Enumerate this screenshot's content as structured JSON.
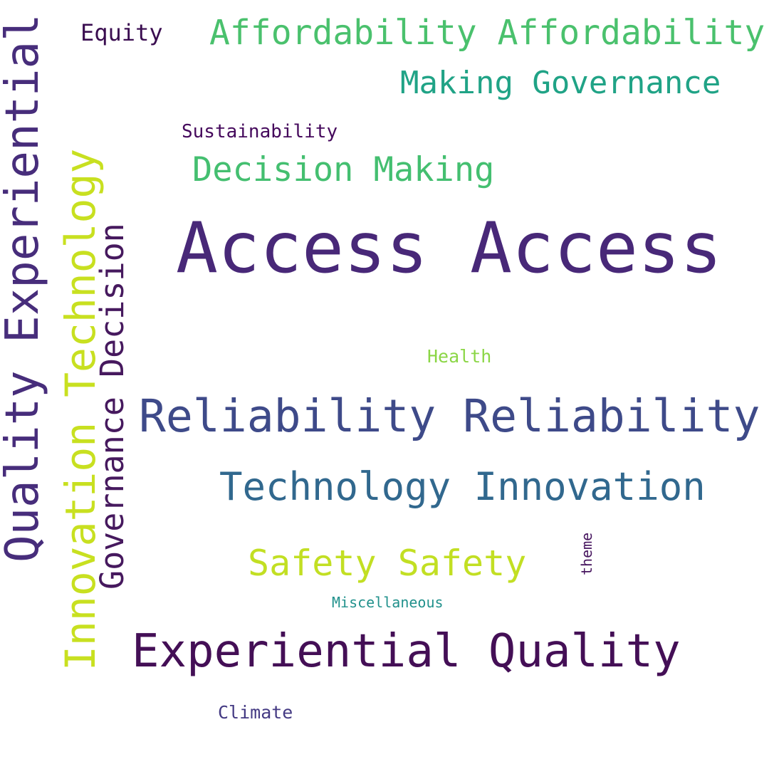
{
  "words": {
    "access": {
      "text": "Access Access",
      "color": "#482878"
    },
    "reliability": {
      "text": "Reliability Reliability",
      "color": "#3e4a89"
    },
    "technology_innovation": {
      "text": "Technology Innovation",
      "color": "#31688e"
    },
    "experiential_quality": {
      "text": "Experiential Quality",
      "color": "#440f56"
    },
    "quality_experiential": {
      "text": "Quality Experiential",
      "color": "#472d7b"
    },
    "innovation_technology": {
      "text": "Innovation Technology",
      "color": "#c8e020"
    },
    "governance_decision": {
      "text": "Governance Decision",
      "color": "#46195e"
    },
    "affordability": {
      "text": "Affordability Affordability",
      "color": "#4ac16d"
    },
    "making_governance": {
      "text": "Making Governance",
      "color": "#20a386"
    },
    "decision_making": {
      "text": "Decision Making",
      "color": "#44bf70"
    },
    "safety": {
      "text": "Safety Safety",
      "color": "#c2df23"
    },
    "equity": {
      "text": "Equity",
      "color": "#3a0d50"
    },
    "sustainability": {
      "text": "Sustainability",
      "color": "#45095c"
    },
    "health": {
      "text": "Health",
      "color": "#8bd646"
    },
    "miscellaneous": {
      "text": "Miscellaneous",
      "color": "#21918c"
    },
    "climate": {
      "text": "Climate",
      "color": "#443a83"
    },
    "theme": {
      "text": "theme",
      "color": "#46145e"
    }
  }
}
